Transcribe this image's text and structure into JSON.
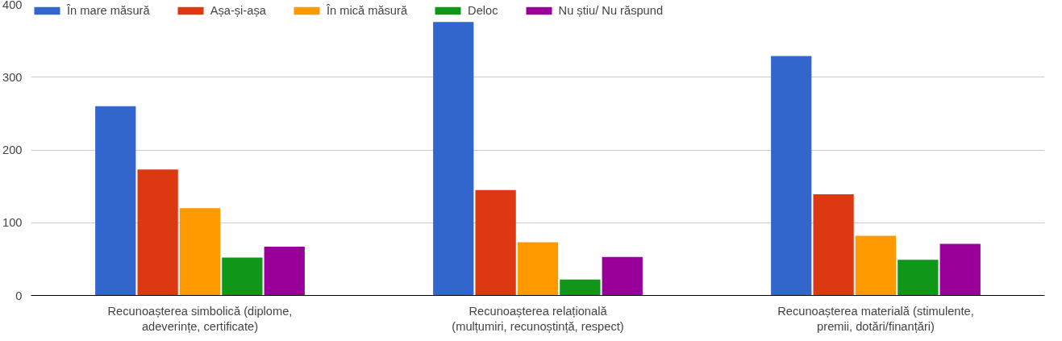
{
  "chart_data": {
    "type": "bar",
    "categories": [
      "Recunoașterea simbolică (diplome, adeverințe, certificate)",
      "Recunoașterea relațională (mulțumiri, recunoștință, respect)",
      "Recunoașterea materială (stimulente, premii, dotări/finanțări)"
    ],
    "series": [
      {
        "name": "În mare măsură",
        "color": "#3366cc",
        "values": [
          260,
          376,
          329
        ]
      },
      {
        "name": "Așa-și-așa",
        "color": "#dc3912",
        "values": [
          173,
          145,
          139
        ]
      },
      {
        "name": "În mică măsură",
        "color": "#ff9900",
        "values": [
          120,
          73,
          82
        ]
      },
      {
        "name": "Deloc",
        "color": "#109618",
        "values": [
          52,
          22,
          49
        ]
      },
      {
        "name": "Nu știu/ Nu răspund",
        "color": "#990099",
        "values": [
          67,
          53,
          71
        ]
      }
    ],
    "ylim": [
      0,
      400
    ],
    "yticks": [
      0,
      100,
      200,
      300,
      400
    ],
    "grid": "y",
    "legend": "top"
  }
}
